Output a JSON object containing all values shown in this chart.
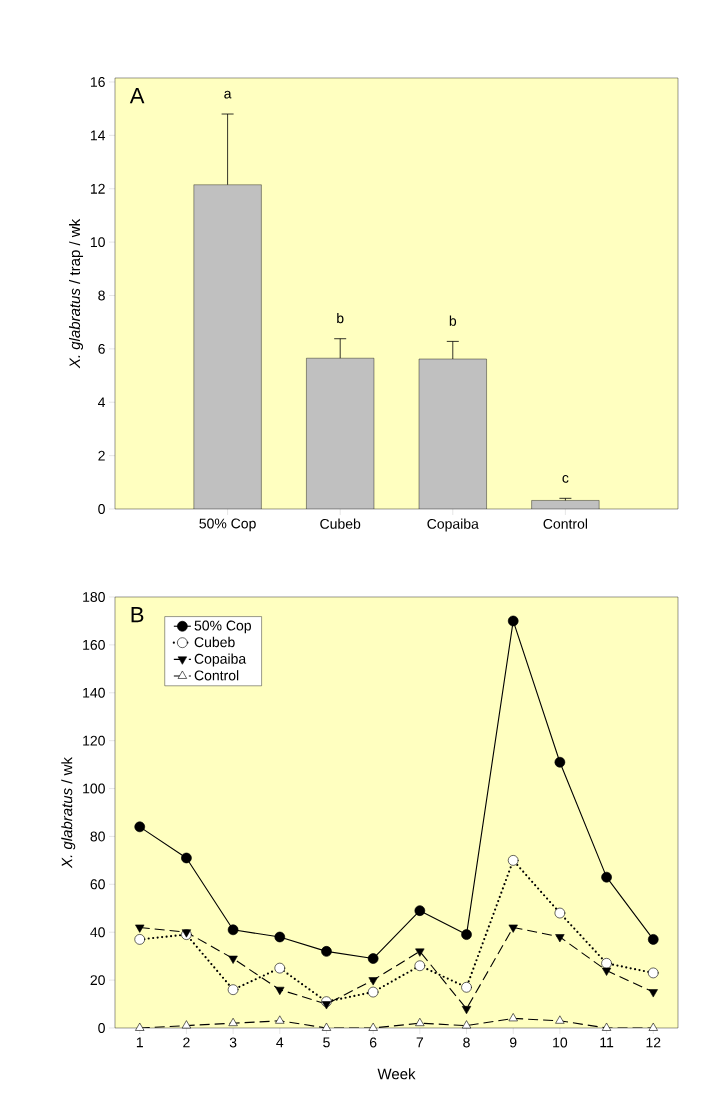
{
  "chart_data": [
    {
      "type": "bar",
      "categories": [
        "50% Cop",
        "Cubeb",
        "Copaiba",
        "Control"
      ],
      "values": [
        12.15,
        5.65,
        5.62,
        0.32
      ],
      "errors": [
        [
          12.15,
          14.8
        ],
        [
          5.65,
          6.38
        ],
        [
          5.62,
          6.28
        ],
        [
          0.32,
          0.4
        ]
      ],
      "color": "#c0c0c0",
      "ylabel": "*X. glabratus* / trap / wk",
      "ylim": [
        0,
        16.15
      ],
      "yticks": [
        0,
        2,
        4,
        6,
        8,
        10,
        12,
        14,
        16
      ],
      "grid": false,
      "legend": false,
      "annotations": [
        "A",
        "a",
        "b",
        "b",
        "c"
      ]
    },
    {
      "type": "line",
      "categories": [
        "1",
        "2",
        "3",
        "4",
        "5",
        "6",
        "7",
        "8",
        "9",
        "10",
        "11",
        "12"
      ],
      "xlabel": "Week",
      "ylabel": "*X. glabratus* / wk",
      "ylim": [
        0,
        180
      ],
      "yticks": [
        0,
        20,
        40,
        60,
        80,
        100,
        120,
        140,
        160,
        180
      ],
      "grid": false,
      "legend": "top left",
      "annotations": [
        "B"
      ],
      "series": [
        {
          "name": "50% Cop",
          "color": "#000000",
          "marker": "circle",
          "line_style": "solid",
          "values": [
            84,
            71,
            41,
            38,
            32,
            29,
            49,
            39,
            170,
            111,
            63,
            37
          ]
        },
        {
          "name": "Cubeb",
          "color": "#000000",
          "marker": "circle",
          "line_style": "dotted",
          "values": [
            37,
            39,
            16,
            25,
            11,
            15,
            26,
            17,
            70,
            48,
            27,
            23
          ]
        },
        {
          "name": "Copaiba",
          "color": "#000000",
          "marker": "triangle",
          "line_style": "dashed",
          "values": [
            42,
            40,
            29,
            16,
            10,
            20,
            32,
            8,
            42,
            38,
            24,
            15
          ]
        },
        {
          "name": "Control",
          "color": "#000000",
          "marker": "triangle",
          "line_style": "dashed",
          "values": [
            0,
            1,
            2,
            3,
            0,
            0,
            2,
            1,
            4,
            3,
            0,
            0
          ]
        }
      ]
    }
  ]
}
